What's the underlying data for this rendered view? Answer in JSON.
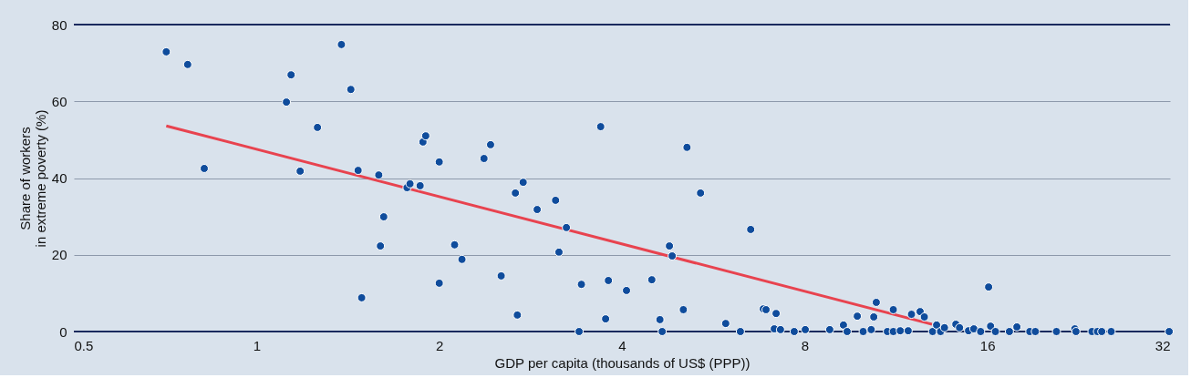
{
  "chart_data": {
    "type": "scatter",
    "xlabel": "GDP per capita (thousands of US$ (PPP))",
    "ylabel": "Share of workers\nin extreme poverty (%)",
    "log": "x",
    "grid": "y",
    "marker": "circle",
    "xlim": [
      0.5,
      32
    ],
    "xticks": [
      0.5,
      1,
      2,
      4,
      8,
      16,
      32
    ],
    "ylim": [
      0,
      80
    ],
    "yticks": [
      0,
      20,
      40,
      60,
      80
    ],
    "series": [
      {
        "color": "#0f4c9c",
        "x": [
          0.71,
          0.77,
          0.82,
          1.12,
          1.14,
          1.18,
          1.26,
          1.38,
          1.43,
          1.47,
          1.49,
          1.59,
          1.6,
          1.62,
          1.77,
          1.79,
          1.86,
          1.88,
          1.9,
          2.0,
          2.0,
          2.12,
          2.18,
          2.37,
          2.43,
          2.53,
          2.67,
          2.69,
          2.75,
          2.9,
          3.11,
          3.15,
          3.24,
          3.4,
          3.43,
          3.69,
          3.76,
          3.8,
          4.07,
          4.48,
          4.62,
          4.66,
          4.79,
          4.84,
          5.05,
          5.12,
          5.39,
          5.93,
          6.27,
          6.52,
          6.84,
          6.91,
          7.18,
          7.13,
          7.3,
          7.69,
          8.02,
          8.8,
          9.27,
          9.4,
          9.77,
          9.99,
          10.3,
          10.4,
          10.5,
          10.95,
          11.2,
          11.2,
          11.5,
          11.85,
          12.0,
          12.4,
          12.6,
          13.0,
          13.2,
          13.4,
          13.6,
          14.2,
          14.4,
          14.9,
          15.2,
          15.6,
          16.08,
          16.2,
          16.5,
          17.4,
          17.9,
          18.8,
          19.2,
          20.8,
          22.3,
          22.4,
          23.8,
          24.3,
          24.7,
          25.6,
          31.9
        ],
        "values": [
          72.9,
          69.6,
          42.5,
          59.8,
          66.9,
          41.8,
          53.2,
          74.8,
          63.1,
          42.0,
          8.8,
          40.8,
          22.3,
          29.9,
          37.5,
          38.5,
          38.0,
          49.4,
          51.0,
          44.2,
          12.6,
          22.6,
          18.8,
          45.1,
          48.7,
          14.5,
          36.1,
          4.3,
          38.9,
          31.8,
          34.2,
          20.7,
          27.1,
          0,
          12.3,
          53.4,
          3.3,
          13.3,
          10.7,
          13.5,
          3.1,
          0,
          22.3,
          19.7,
          5.7,
          48.0,
          36.1,
          2.1,
          0,
          26.6,
          5.9,
          5.7,
          4.7,
          0.7,
          0.5,
          0,
          0.5,
          0.5,
          1.7,
          0,
          4.0,
          0,
          0.5,
          3.8,
          7.6,
          0,
          5.7,
          0,
          0.2,
          0.2,
          4.5,
          5.2,
          3.8,
          0,
          1.7,
          0,
          1.0,
          1.9,
          1.0,
          0.2,
          0.7,
          0,
          11.6,
          1.4,
          0,
          0,
          1.2,
          0,
          0,
          0,
          0.7,
          0,
          0,
          0,
          0,
          0,
          0
        ]
      },
      {
        "type": "line",
        "marker": "none",
        "color": "#e8434f",
        "x": [
          0.71,
          12.97
        ],
        "values": [
          53.6,
          1.9
        ]
      }
    ]
  }
}
